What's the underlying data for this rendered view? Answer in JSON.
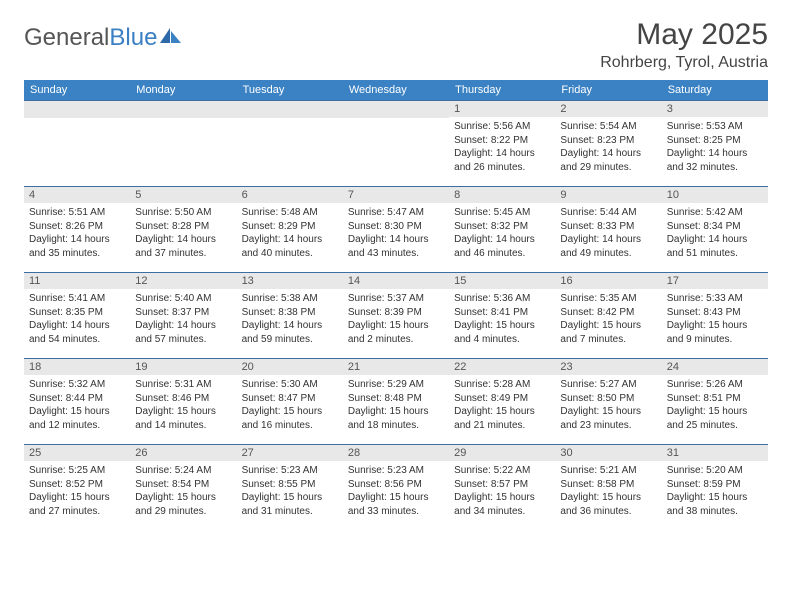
{
  "brand": {
    "general": "General",
    "blue": "Blue"
  },
  "title": "May 2025",
  "location": "Rohrberg, Tyrol, Austria",
  "colors": {
    "header_bg": "#3b82c4",
    "header_text": "#ffffff",
    "daynum_bg": "#e8e8e8",
    "border": "#3b6fa0",
    "text": "#333333",
    "title_text": "#444444"
  },
  "weekdays": [
    "Sunday",
    "Monday",
    "Tuesday",
    "Wednesday",
    "Thursday",
    "Friday",
    "Saturday"
  ],
  "weeks": [
    [
      {
        "n": "",
        "sr": "",
        "ss": "",
        "dl": ""
      },
      {
        "n": "",
        "sr": "",
        "ss": "",
        "dl": ""
      },
      {
        "n": "",
        "sr": "",
        "ss": "",
        "dl": ""
      },
      {
        "n": "",
        "sr": "",
        "ss": "",
        "dl": ""
      },
      {
        "n": "1",
        "sr": "Sunrise: 5:56 AM",
        "ss": "Sunset: 8:22 PM",
        "dl": "Daylight: 14 hours and 26 minutes."
      },
      {
        "n": "2",
        "sr": "Sunrise: 5:54 AM",
        "ss": "Sunset: 8:23 PM",
        "dl": "Daylight: 14 hours and 29 minutes."
      },
      {
        "n": "3",
        "sr": "Sunrise: 5:53 AM",
        "ss": "Sunset: 8:25 PM",
        "dl": "Daylight: 14 hours and 32 minutes."
      }
    ],
    [
      {
        "n": "4",
        "sr": "Sunrise: 5:51 AM",
        "ss": "Sunset: 8:26 PM",
        "dl": "Daylight: 14 hours and 35 minutes."
      },
      {
        "n": "5",
        "sr": "Sunrise: 5:50 AM",
        "ss": "Sunset: 8:28 PM",
        "dl": "Daylight: 14 hours and 37 minutes."
      },
      {
        "n": "6",
        "sr": "Sunrise: 5:48 AM",
        "ss": "Sunset: 8:29 PM",
        "dl": "Daylight: 14 hours and 40 minutes."
      },
      {
        "n": "7",
        "sr": "Sunrise: 5:47 AM",
        "ss": "Sunset: 8:30 PM",
        "dl": "Daylight: 14 hours and 43 minutes."
      },
      {
        "n": "8",
        "sr": "Sunrise: 5:45 AM",
        "ss": "Sunset: 8:32 PM",
        "dl": "Daylight: 14 hours and 46 minutes."
      },
      {
        "n": "9",
        "sr": "Sunrise: 5:44 AM",
        "ss": "Sunset: 8:33 PM",
        "dl": "Daylight: 14 hours and 49 minutes."
      },
      {
        "n": "10",
        "sr": "Sunrise: 5:42 AM",
        "ss": "Sunset: 8:34 PM",
        "dl": "Daylight: 14 hours and 51 minutes."
      }
    ],
    [
      {
        "n": "11",
        "sr": "Sunrise: 5:41 AM",
        "ss": "Sunset: 8:35 PM",
        "dl": "Daylight: 14 hours and 54 minutes."
      },
      {
        "n": "12",
        "sr": "Sunrise: 5:40 AM",
        "ss": "Sunset: 8:37 PM",
        "dl": "Daylight: 14 hours and 57 minutes."
      },
      {
        "n": "13",
        "sr": "Sunrise: 5:38 AM",
        "ss": "Sunset: 8:38 PM",
        "dl": "Daylight: 14 hours and 59 minutes."
      },
      {
        "n": "14",
        "sr": "Sunrise: 5:37 AM",
        "ss": "Sunset: 8:39 PM",
        "dl": "Daylight: 15 hours and 2 minutes."
      },
      {
        "n": "15",
        "sr": "Sunrise: 5:36 AM",
        "ss": "Sunset: 8:41 PM",
        "dl": "Daylight: 15 hours and 4 minutes."
      },
      {
        "n": "16",
        "sr": "Sunrise: 5:35 AM",
        "ss": "Sunset: 8:42 PM",
        "dl": "Daylight: 15 hours and 7 minutes."
      },
      {
        "n": "17",
        "sr": "Sunrise: 5:33 AM",
        "ss": "Sunset: 8:43 PM",
        "dl": "Daylight: 15 hours and 9 minutes."
      }
    ],
    [
      {
        "n": "18",
        "sr": "Sunrise: 5:32 AM",
        "ss": "Sunset: 8:44 PM",
        "dl": "Daylight: 15 hours and 12 minutes."
      },
      {
        "n": "19",
        "sr": "Sunrise: 5:31 AM",
        "ss": "Sunset: 8:46 PM",
        "dl": "Daylight: 15 hours and 14 minutes."
      },
      {
        "n": "20",
        "sr": "Sunrise: 5:30 AM",
        "ss": "Sunset: 8:47 PM",
        "dl": "Daylight: 15 hours and 16 minutes."
      },
      {
        "n": "21",
        "sr": "Sunrise: 5:29 AM",
        "ss": "Sunset: 8:48 PM",
        "dl": "Daylight: 15 hours and 18 minutes."
      },
      {
        "n": "22",
        "sr": "Sunrise: 5:28 AM",
        "ss": "Sunset: 8:49 PM",
        "dl": "Daylight: 15 hours and 21 minutes."
      },
      {
        "n": "23",
        "sr": "Sunrise: 5:27 AM",
        "ss": "Sunset: 8:50 PM",
        "dl": "Daylight: 15 hours and 23 minutes."
      },
      {
        "n": "24",
        "sr": "Sunrise: 5:26 AM",
        "ss": "Sunset: 8:51 PM",
        "dl": "Daylight: 15 hours and 25 minutes."
      }
    ],
    [
      {
        "n": "25",
        "sr": "Sunrise: 5:25 AM",
        "ss": "Sunset: 8:52 PM",
        "dl": "Daylight: 15 hours and 27 minutes."
      },
      {
        "n": "26",
        "sr": "Sunrise: 5:24 AM",
        "ss": "Sunset: 8:54 PM",
        "dl": "Daylight: 15 hours and 29 minutes."
      },
      {
        "n": "27",
        "sr": "Sunrise: 5:23 AM",
        "ss": "Sunset: 8:55 PM",
        "dl": "Daylight: 15 hours and 31 minutes."
      },
      {
        "n": "28",
        "sr": "Sunrise: 5:23 AM",
        "ss": "Sunset: 8:56 PM",
        "dl": "Daylight: 15 hours and 33 minutes."
      },
      {
        "n": "29",
        "sr": "Sunrise: 5:22 AM",
        "ss": "Sunset: 8:57 PM",
        "dl": "Daylight: 15 hours and 34 minutes."
      },
      {
        "n": "30",
        "sr": "Sunrise: 5:21 AM",
        "ss": "Sunset: 8:58 PM",
        "dl": "Daylight: 15 hours and 36 minutes."
      },
      {
        "n": "31",
        "sr": "Sunrise: 5:20 AM",
        "ss": "Sunset: 8:59 PM",
        "dl": "Daylight: 15 hours and 38 minutes."
      }
    ]
  ]
}
